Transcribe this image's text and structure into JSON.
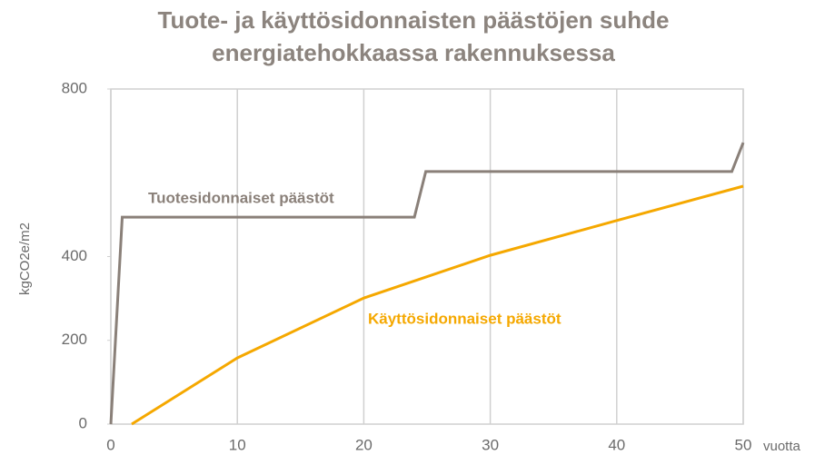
{
  "chart_data": {
    "type": "line",
    "title": [
      "Tuote- ja käyttösidonnaisten päästöjen suhde",
      "energiatehokkaassa rakennuksessa"
    ],
    "y_label": "kgCO2e/m2",
    "x_label": "vuotta",
    "xlim": [
      0,
      50
    ],
    "xticks": [
      0,
      10,
      20,
      30,
      40,
      50
    ],
    "ylim": [
      0,
      800
    ],
    "yticks": [
      0,
      200,
      400,
      800
    ],
    "grid": true,
    "series": [
      {
        "name": "Tuotesidonnaiset päästöt",
        "color": "#8a8079",
        "x": [
          0,
          0.9,
          24,
          24.9,
          49.1,
          50
        ],
        "values": [
          0,
          494,
          494,
          603,
          603,
          672
        ]
      },
      {
        "name": "Käyttösidonnaiset päästöt",
        "color": "#f5a800",
        "x": [
          1.65,
          10,
          20,
          30,
          40,
          50
        ],
        "values": [
          0,
          158,
          301,
          403,
          486,
          568
        ]
      }
    ]
  }
}
